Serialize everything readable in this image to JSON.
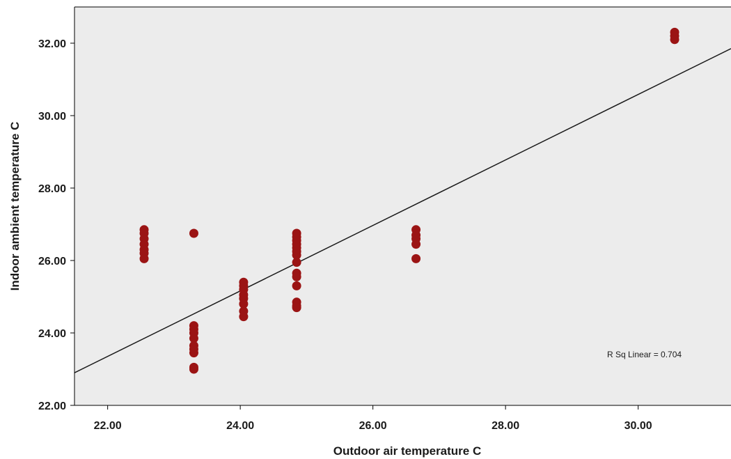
{
  "chart_data": {
    "type": "scatter",
    "xlabel": "Outdoor air temperature C",
    "ylabel": "Indoor ambient temperature C",
    "xlim": [
      21.5,
      31.4
    ],
    "ylim": [
      22.0,
      33.0
    ],
    "x_ticks": [
      "22.00",
      "24.00",
      "26.00",
      "28.00",
      "30.00"
    ],
    "x_tick_values": [
      22,
      24,
      26,
      28,
      30
    ],
    "y_ticks": [
      "22.00",
      "24.00",
      "26.00",
      "28.00",
      "30.00",
      "32.00"
    ],
    "y_tick_values": [
      22,
      24,
      26,
      28,
      30,
      32
    ],
    "grid": false,
    "background_color": "#ececec",
    "marker_color": "#9b1414",
    "line_color": "#1a1a1a",
    "annotation": "R Sq Linear = 0.704",
    "fit_line": [
      {
        "x": 21.5,
        "y": 22.9
      },
      {
        "x": 31.4,
        "y": 31.85
      }
    ],
    "points": [
      {
        "x": 22.55,
        "y": 26.85
      },
      {
        "x": 22.55,
        "y": 26.75
      },
      {
        "x": 22.55,
        "y": 26.6
      },
      {
        "x": 22.55,
        "y": 26.45
      },
      {
        "x": 22.55,
        "y": 26.3
      },
      {
        "x": 22.55,
        "y": 26.2
      },
      {
        "x": 22.55,
        "y": 26.05
      },
      {
        "x": 23.3,
        "y": 26.75
      },
      {
        "x": 23.3,
        "y": 24.2
      },
      {
        "x": 23.3,
        "y": 24.1
      },
      {
        "x": 23.3,
        "y": 24.0
      },
      {
        "x": 23.3,
        "y": 23.85
      },
      {
        "x": 23.3,
        "y": 23.65
      },
      {
        "x": 23.3,
        "y": 23.55
      },
      {
        "x": 23.3,
        "y": 23.45
      },
      {
        "x": 23.3,
        "y": 23.05
      },
      {
        "x": 23.3,
        "y": 23.0
      },
      {
        "x": 24.05,
        "y": 25.4
      },
      {
        "x": 24.05,
        "y": 25.3
      },
      {
        "x": 24.05,
        "y": 25.2
      },
      {
        "x": 24.05,
        "y": 25.05
      },
      {
        "x": 24.05,
        "y": 24.95
      },
      {
        "x": 24.05,
        "y": 24.8
      },
      {
        "x": 24.05,
        "y": 24.6
      },
      {
        "x": 24.05,
        "y": 24.45
      },
      {
        "x": 24.85,
        "y": 26.75
      },
      {
        "x": 24.85,
        "y": 26.65
      },
      {
        "x": 24.85,
        "y": 26.55
      },
      {
        "x": 24.85,
        "y": 26.45
      },
      {
        "x": 24.85,
        "y": 26.35
      },
      {
        "x": 24.85,
        "y": 26.25
      },
      {
        "x": 24.85,
        "y": 26.15
      },
      {
        "x": 24.85,
        "y": 25.95
      },
      {
        "x": 24.85,
        "y": 25.65
      },
      {
        "x": 24.85,
        "y": 25.55
      },
      {
        "x": 24.85,
        "y": 25.3
      },
      {
        "x": 24.85,
        "y": 24.85
      },
      {
        "x": 24.85,
        "y": 24.75
      },
      {
        "x": 24.85,
        "y": 24.7
      },
      {
        "x": 26.65,
        "y": 26.85
      },
      {
        "x": 26.65,
        "y": 26.7
      },
      {
        "x": 26.65,
        "y": 26.6
      },
      {
        "x": 26.65,
        "y": 26.45
      },
      {
        "x": 26.65,
        "y": 26.05
      },
      {
        "x": 30.55,
        "y": 32.3
      },
      {
        "x": 30.55,
        "y": 32.2
      },
      {
        "x": 30.55,
        "y": 32.1
      }
    ]
  }
}
